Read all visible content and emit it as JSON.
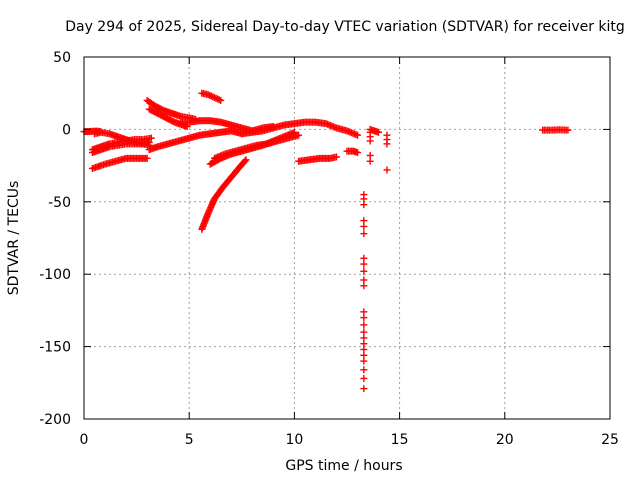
{
  "chart_data": {
    "type": "scatter",
    "title": "Day 294 of 2025, Sidereal Day-to-day VTEC variation (SDTVAR) for receiver kitg",
    "xlabel": "GPS time / hours",
    "ylabel": "SDTVAR / TECUs",
    "xlim": [
      0,
      25
    ],
    "ylim": [
      -200,
      50
    ],
    "xticks": [
      0,
      5,
      10,
      15,
      20,
      25
    ],
    "yticks": [
      50,
      0,
      -50,
      -100,
      -150,
      -200
    ],
    "grid": true,
    "marker": "+",
    "series": [
      {
        "name": "SDTVAR",
        "color": "#ff0000",
        "tracks": [
          {
            "x": [
              0.0,
              0.2,
              0.4,
              0.6,
              0.8
            ],
            "y": [
              -1.5,
              -1.5,
              -1.3,
              -1.2,
              -1.5
            ]
          },
          {
            "x": [
              0.5,
              0.8,
              1.2,
              1.6,
              2.0,
              2.4,
              2.8,
              3.1
            ],
            "y": [
              -3,
              -2,
              -3,
              -5,
              -7,
              -9,
              -10,
              -11
            ]
          },
          {
            "x": [
              0.4,
              0.8,
              1.2,
              1.6,
              2.0,
              2.4,
              2.8,
              3.2
            ],
            "y": [
              -14,
              -12,
              -10,
              -9,
              -8,
              -7,
              -7,
              -6
            ]
          },
          {
            "x": [
              0.4,
              0.8,
              1.2,
              1.6,
              2.0,
              2.4,
              2.8,
              3.1
            ],
            "y": [
              -16,
              -14,
              -12,
              -11,
              -10,
              -10,
              -10,
              -9
            ]
          },
          {
            "x": [
              0.4,
              1.0,
              1.5,
              2.0,
              2.5,
              3.0
            ],
            "y": [
              -27,
              -24,
              -22,
              -20,
              -20,
              -20
            ]
          },
          {
            "x": [
              3.1,
              3.5,
              4.0,
              4.5,
              5.0,
              5.5,
              6.0,
              6.5,
              7.0,
              7.5,
              8.0,
              8.5,
              9.0,
              9.5,
              10.0,
              10.5,
              11.0,
              11.5,
              12.0,
              12.5,
              13.0
            ],
            "y": [
              -14,
              -12,
              -10,
              -8,
              -6,
              -4,
              -3,
              -2,
              -1,
              -3,
              -2,
              -1,
              1,
              3,
              4,
              5,
              5,
              4,
              1,
              -1,
              -4
            ]
          },
          {
            "x": [
              3.0,
              3.4,
              3.8,
              4.2,
              4.6,
              5.0,
              5.3
            ],
            "y": [
              20,
              16,
              13,
              11,
              9,
              8,
              7
            ]
          },
          {
            "x": [
              3.1,
              3.5,
              3.9,
              4.3,
              4.7,
              4.9
            ],
            "y": [
              14,
              11,
              8,
              5,
              3,
              2
            ]
          },
          {
            "x": [
              4.6,
              5.0,
              5.5,
              6.0,
              6.5,
              7.0,
              7.5,
              8.0,
              8.5,
              9.0
            ],
            "y": [
              5,
              5,
              6,
              6,
              5,
              3,
              1,
              -1,
              1,
              2
            ]
          },
          {
            "x": [
              5.6,
              5.9,
              6.2,
              6.5
            ],
            "y": [
              25,
              24,
              22,
              20
            ]
          },
          {
            "x": [
              5.6,
              5.9,
              6.2,
              6.6,
              7.0,
              7.4,
              7.7
            ],
            "y": [
              -69,
              -58,
              -48,
              -40,
              -33,
              -26,
              -21
            ]
          },
          {
            "x": [
              6.0,
              6.5,
              7.0,
              7.5,
              8.0,
              8.5,
              9.0,
              9.5,
              10.0
            ],
            "y": [
              -24,
              -20,
              -17,
              -15,
              -13,
              -11,
              -8,
              -5,
              -2
            ]
          },
          {
            "x": [
              6.2,
              6.7,
              7.2,
              7.7,
              8.2,
              8.7,
              9.2,
              9.7,
              10.2
            ],
            "y": [
              -20,
              -17,
              -15,
              -13,
              -11,
              -10,
              -8,
              -6,
              -4
            ]
          },
          {
            "x": [
              10.2,
              10.7,
              11.2,
              11.7,
              12.0
            ],
            "y": [
              -22,
              -21,
              -20,
              -20,
              -19
            ]
          },
          {
            "x": [
              12.5,
              12.8,
              13.0
            ],
            "y": [
              -15,
              -15,
              -16
            ]
          },
          {
            "x": [
              13.6,
              13.8,
              14.0
            ],
            "y": [
              0,
              -1,
              -2
            ]
          },
          {
            "x": [
              21.8,
              22.2,
              22.6,
              23.0
            ],
            "y": [
              -0.5,
              -0.5,
              -0.3,
              -0.5
            ]
          }
        ],
        "points": [
          {
            "x": 13.3,
            "y": -45
          },
          {
            "x": 13.3,
            "y": -48
          },
          {
            "x": 13.3,
            "y": -52
          },
          {
            "x": 13.3,
            "y": -63
          },
          {
            "x": 13.3,
            "y": -67
          },
          {
            "x": 13.3,
            "y": -72
          },
          {
            "x": 13.3,
            "y": -89
          },
          {
            "x": 13.3,
            "y": -93
          },
          {
            "x": 13.3,
            "y": -98
          },
          {
            "x": 13.3,
            "y": -104
          },
          {
            "x": 13.3,
            "y": -108
          },
          {
            "x": 13.3,
            "y": -126
          },
          {
            "x": 13.3,
            "y": -130
          },
          {
            "x": 13.3,
            "y": -135
          },
          {
            "x": 13.3,
            "y": -140
          },
          {
            "x": 13.3,
            "y": -144
          },
          {
            "x": 13.3,
            "y": -148
          },
          {
            "x": 13.3,
            "y": -152
          },
          {
            "x": 13.3,
            "y": -156
          },
          {
            "x": 13.3,
            "y": -160
          },
          {
            "x": 13.3,
            "y": -166
          },
          {
            "x": 13.3,
            "y": -172
          },
          {
            "x": 13.3,
            "y": -179
          },
          {
            "x": 13.6,
            "y": -2
          },
          {
            "x": 13.6,
            "y": -5
          },
          {
            "x": 13.6,
            "y": -8
          },
          {
            "x": 13.6,
            "y": -18
          },
          {
            "x": 13.6,
            "y": -22
          },
          {
            "x": 14.4,
            "y": -4
          },
          {
            "x": 14.4,
            "y": -7
          },
          {
            "x": 14.4,
            "y": -10
          },
          {
            "x": 14.4,
            "y": -28
          }
        ]
      }
    ]
  }
}
